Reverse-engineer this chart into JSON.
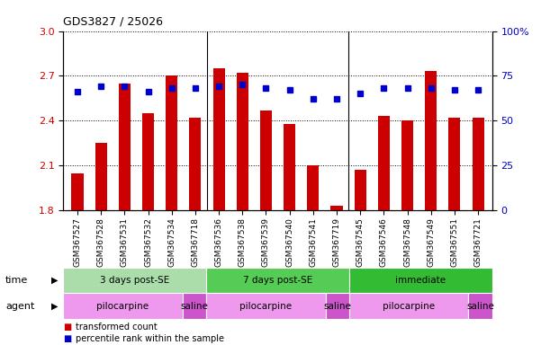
{
  "title": "GDS3827 / 25026",
  "samples": [
    "GSM367527",
    "GSM367528",
    "GSM367531",
    "GSM367532",
    "GSM367534",
    "GSM367718",
    "GSM367536",
    "GSM367538",
    "GSM367539",
    "GSM367540",
    "GSM367541",
    "GSM367719",
    "GSM367545",
    "GSM367546",
    "GSM367548",
    "GSM367549",
    "GSM367551",
    "GSM367721"
  ],
  "transformed_count": [
    2.05,
    2.25,
    2.65,
    2.45,
    2.7,
    2.42,
    2.75,
    2.72,
    2.47,
    2.38,
    2.1,
    1.83,
    2.07,
    2.43,
    2.4,
    2.73,
    2.42,
    2.42
  ],
  "percentile_rank": [
    66,
    69,
    69,
    66,
    68,
    68,
    69,
    70,
    68,
    67,
    62,
    62,
    65,
    68,
    68,
    68,
    67,
    67
  ],
  "ymin": 1.8,
  "ymax": 3.0,
  "yticks_left": [
    1.8,
    2.1,
    2.4,
    2.7,
    3.0
  ],
  "y2min": 0,
  "y2max": 100,
  "y2ticks": [
    0,
    25,
    50,
    75,
    100
  ],
  "bar_color": "#cc0000",
  "dot_color": "#0000cc",
  "bar_width": 0.5,
  "time_groups": [
    {
      "label": "3 days post-SE",
      "start": 0,
      "end": 6,
      "color": "#aaddaa"
    },
    {
      "label": "7 days post-SE",
      "start": 6,
      "end": 12,
      "color": "#55cc55"
    },
    {
      "label": "immediate",
      "start": 12,
      "end": 18,
      "color": "#33bb33"
    }
  ],
  "agent_groups": [
    {
      "label": "pilocarpine",
      "start": 0,
      "end": 5,
      "color": "#ee99ee"
    },
    {
      "label": "saline",
      "start": 5,
      "end": 6,
      "color": "#cc55cc"
    },
    {
      "label": "pilocarpine",
      "start": 6,
      "end": 11,
      "color": "#ee99ee"
    },
    {
      "label": "saline",
      "start": 11,
      "end": 12,
      "color": "#cc55cc"
    },
    {
      "label": "pilocarpine",
      "start": 12,
      "end": 17,
      "color": "#ee99ee"
    },
    {
      "label": "saline",
      "start": 17,
      "end": 18,
      "color": "#cc55cc"
    }
  ],
  "group_separators": [
    5.5,
    11.5
  ],
  "bg_color": "#ffffff",
  "tick_label_color_left": "#cc0000",
  "tick_label_color_right": "#0000cc",
  "grid_dotted_color": "black"
}
